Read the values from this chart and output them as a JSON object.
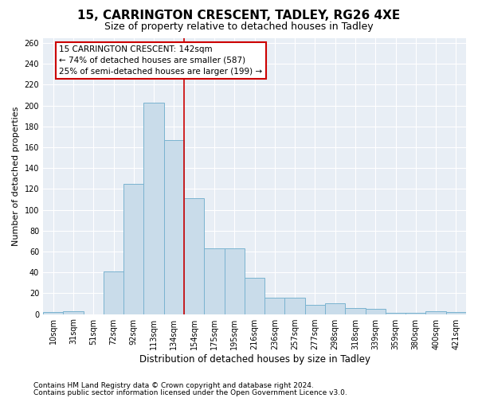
{
  "title1": "15, CARRINGTON CRESCENT, TADLEY, RG26 4XE",
  "title2": "Size of property relative to detached houses in Tadley",
  "xlabel": "Distribution of detached houses by size in Tadley",
  "ylabel": "Number of detached properties",
  "categories": [
    "10sqm",
    "31sqm",
    "51sqm",
    "72sqm",
    "92sqm",
    "113sqm",
    "134sqm",
    "154sqm",
    "175sqm",
    "195sqm",
    "216sqm",
    "236sqm",
    "257sqm",
    "277sqm",
    "298sqm",
    "318sqm",
    "339sqm",
    "359sqm",
    "380sqm",
    "400sqm",
    "421sqm"
  ],
  "values": [
    2,
    3,
    0,
    41,
    125,
    203,
    167,
    111,
    63,
    63,
    35,
    16,
    16,
    9,
    10,
    6,
    5,
    1,
    1,
    3,
    2
  ],
  "bar_color": "#c9dcea",
  "bar_edge_color": "#7ab3d0",
  "highlight_line_color": "#cc0000",
  "annotation_text": "15 CARRINGTON CRESCENT: 142sqm\n← 74% of detached houses are smaller (587)\n25% of semi-detached houses are larger (199) →",
  "annotation_box_color": "#cc0000",
  "ylim": [
    0,
    265
  ],
  "yticks": [
    0,
    20,
    40,
    60,
    80,
    100,
    120,
    140,
    160,
    180,
    200,
    220,
    240,
    260
  ],
  "footer1": "Contains HM Land Registry data © Crown copyright and database right 2024.",
  "footer2": "Contains public sector information licensed under the Open Government Licence v3.0.",
  "plot_bg_color": "#e8eef5",
  "title1_fontsize": 11,
  "title2_fontsize": 9,
  "xlabel_fontsize": 8.5,
  "ylabel_fontsize": 8,
  "tick_fontsize": 7,
  "annot_fontsize": 7.5,
  "footer_fontsize": 6.5
}
